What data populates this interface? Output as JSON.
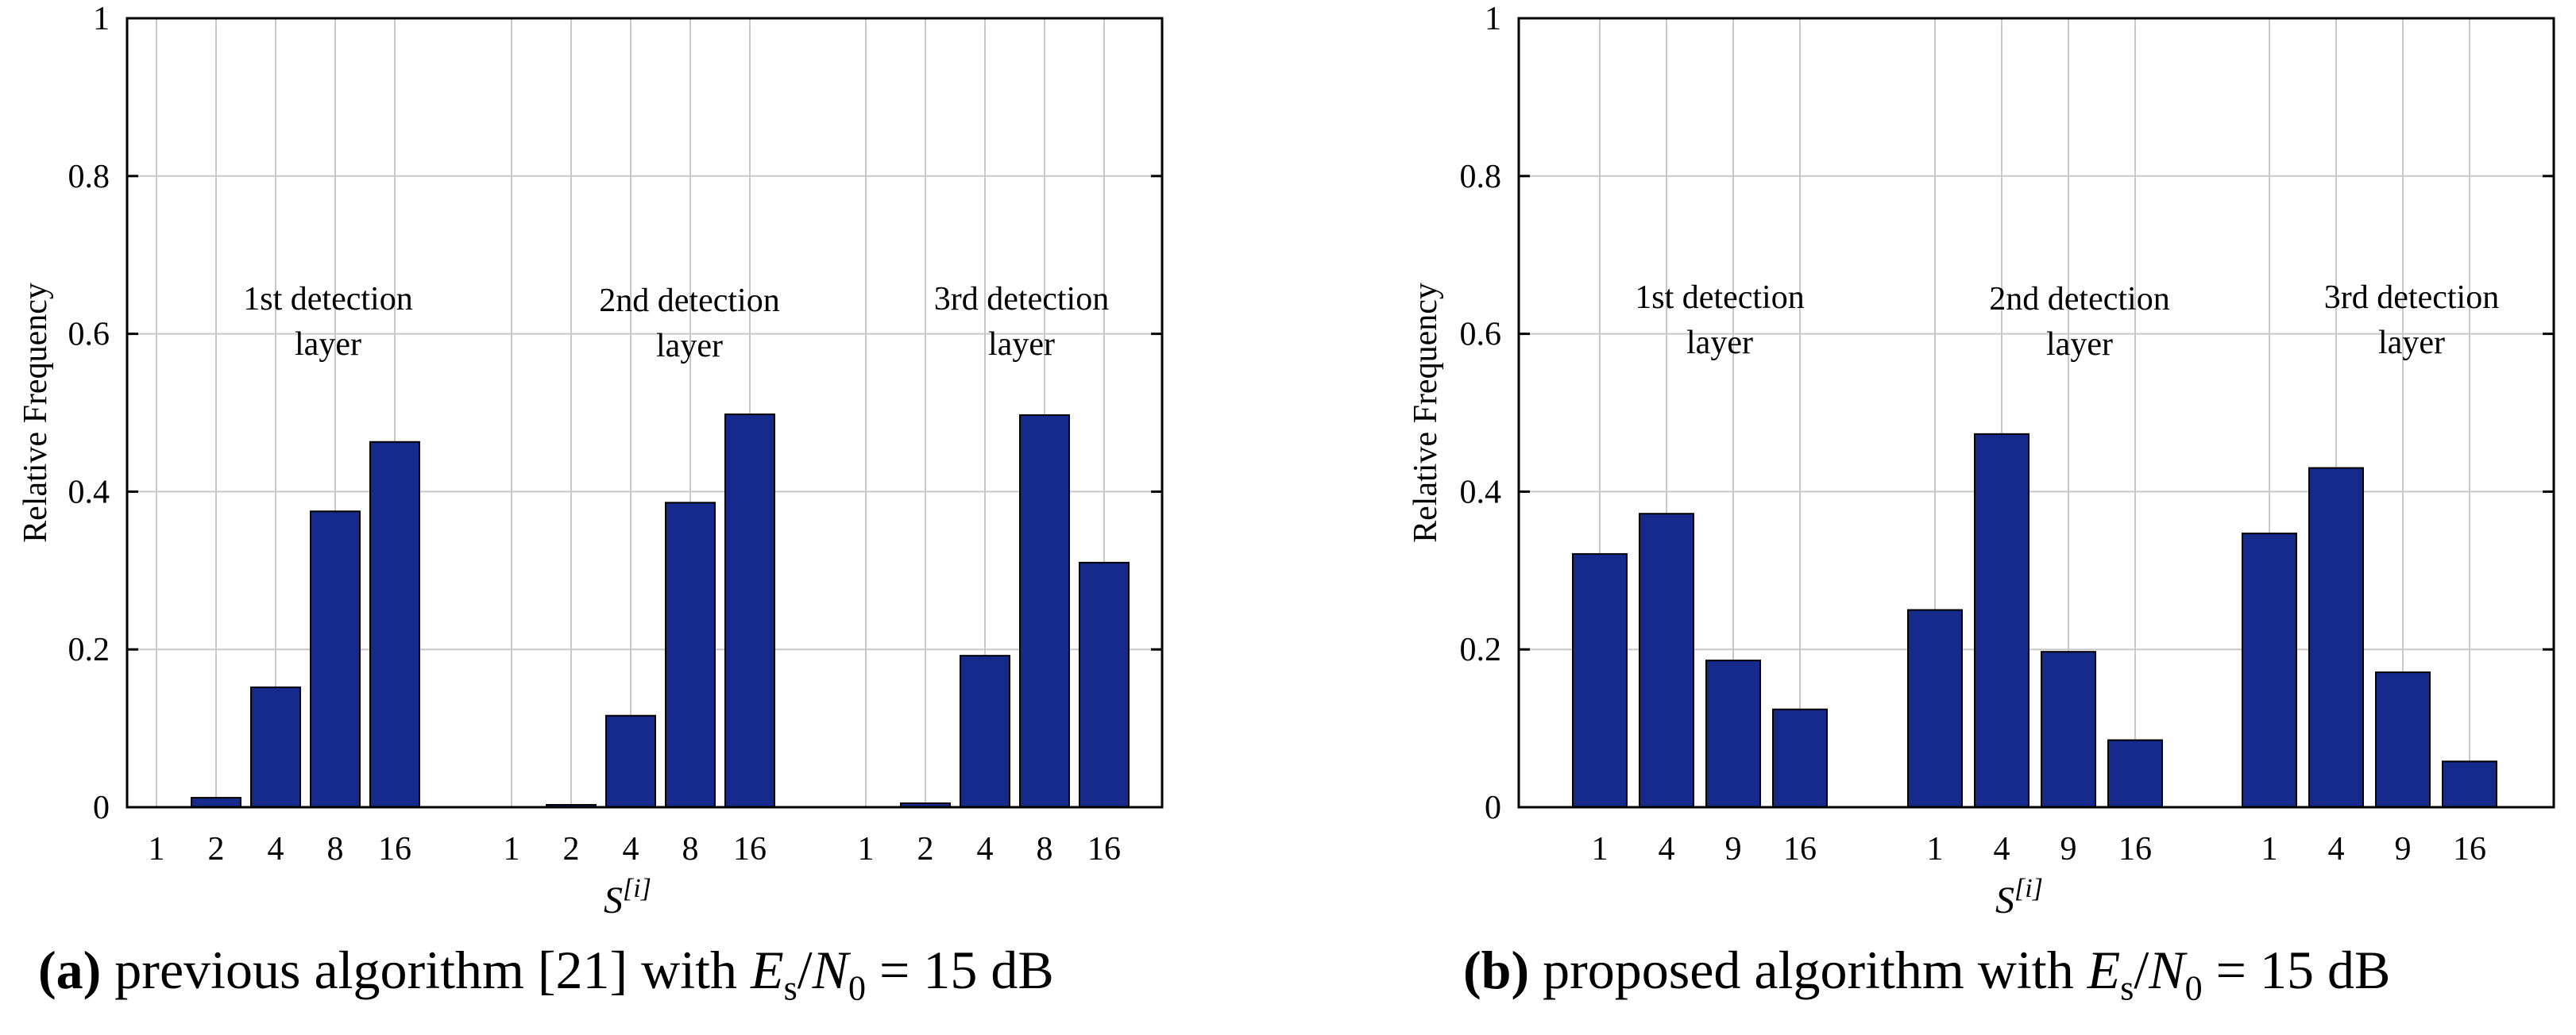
{
  "colors": {
    "bar_fill": "#152a8a",
    "bar_stroke": "#000000",
    "grid": "#c8c8c8",
    "axis": "#000000",
    "background": "#ffffff"
  },
  "chart_data": [
    {
      "type": "bar",
      "panel": "a",
      "ylabel": "Relative Frequency",
      "xlabel": {
        "var": "S",
        "sup": "[i]"
      },
      "ylim": [
        0,
        1
      ],
      "yticks": [
        0,
        0.2,
        0.4,
        0.6,
        0.8,
        1
      ],
      "ytick_labels": [
        "0",
        "0.2",
        "0.4",
        "0.6",
        "0.8",
        "1"
      ],
      "grid": true,
      "groups": [
        {
          "label_lines": [
            "1st detection",
            "layer"
          ],
          "categories": [
            "1",
            "2",
            "4",
            "8",
            "16"
          ],
          "values": [
            0.0,
            0.012,
            0.152,
            0.375,
            0.463
          ]
        },
        {
          "label_lines": [
            "2nd detection",
            "layer"
          ],
          "categories": [
            "1",
            "2",
            "4",
            "8",
            "16"
          ],
          "values": [
            0.0,
            0.003,
            0.116,
            0.386,
            0.498
          ]
        },
        {
          "label_lines": [
            "3rd detection",
            "layer"
          ],
          "categories": [
            "1",
            "2",
            "4",
            "8",
            "16"
          ],
          "values": [
            0.0,
            0.005,
            0.192,
            0.497,
            0.31
          ]
        }
      ],
      "caption": {
        "label": "(a)",
        "prefix": " previous algorithm [21] with ",
        "var1": "E",
        "sub1": "s",
        "slash": "/",
        "var2": "N",
        "sub2": "0",
        "suffix": " = 15 dB"
      }
    },
    {
      "type": "bar",
      "panel": "b",
      "ylabel": "Relative Frequency",
      "xlabel": {
        "var": "S",
        "sup": "[i]"
      },
      "ylim": [
        0,
        1
      ],
      "yticks": [
        0,
        0.2,
        0.4,
        0.6,
        0.8,
        1
      ],
      "ytick_labels": [
        "0",
        "0.2",
        "0.4",
        "0.6",
        "0.8",
        "1"
      ],
      "grid": true,
      "groups": [
        {
          "label_lines": [
            "1st detection",
            "layer"
          ],
          "categories": [
            "1",
            "4",
            "9",
            "16"
          ],
          "values": [
            0.321,
            0.372,
            0.186,
            0.124
          ]
        },
        {
          "label_lines": [
            "2nd detection",
            "layer"
          ],
          "categories": [
            "1",
            "4",
            "9",
            "16"
          ],
          "values": [
            0.25,
            0.473,
            0.197,
            0.085
          ]
        },
        {
          "label_lines": [
            "3rd detection",
            "layer"
          ],
          "categories": [
            "1",
            "4",
            "9",
            "16"
          ],
          "values": [
            0.347,
            0.43,
            0.171,
            0.058
          ]
        }
      ],
      "caption": {
        "label": "(b)",
        "prefix": " proposed algorithm with ",
        "var1": "E",
        "sub1": "s",
        "slash": "/",
        "var2": "N",
        "sub2": "0",
        "suffix": " = 15 dB"
      }
    }
  ]
}
